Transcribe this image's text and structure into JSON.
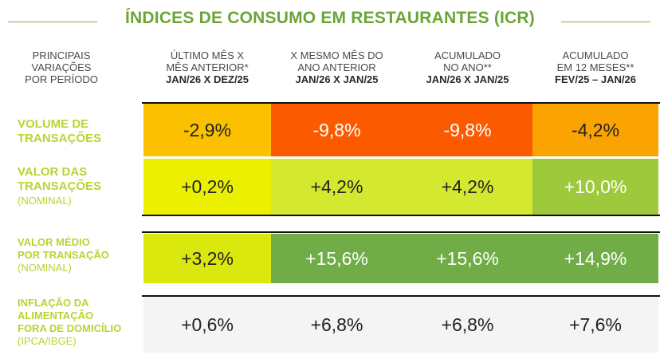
{
  "title": "ÍNDICES DE CONSUMO EM RESTAURANTES (ICR)",
  "corner_header": [
    "PRINCIPAIS",
    "VARIAÇÕES",
    "POR PERÍODO"
  ],
  "columns": [
    {
      "line1": "ÚLTIMO MÊS X",
      "line2": "MÊS ANTERIOR*",
      "period": "JAN/26 X DEZ/25"
    },
    {
      "line1": "X MESMO MÊS DO",
      "line2": "ANO ANTERIOR",
      "period": "JAN/26 X JAN/25"
    },
    {
      "line1": "ACUMULADO",
      "line2": "NO ANO**",
      "period": "JAN/26 X JAN/25"
    },
    {
      "line1": "ACUMULADO",
      "line2": "EM 12 MESES**",
      "period": "FEV/25 – JAN/26"
    }
  ],
  "rows": [
    {
      "label": "VOLUME DE\nTRANSAÇÕES",
      "sub": "",
      "values": [
        "-2,9%",
        "-9,8%",
        "-9,8%",
        "-4,2%"
      ],
      "colors": [
        "#fbc000",
        "#fb5a00",
        "#fb5a00",
        "#fba300"
      ],
      "text_colors": [
        "#222222",
        "#ffffff",
        "#ffffff",
        "#222222"
      ]
    },
    {
      "label": "VALOR DAS\nTRANSAÇÕES",
      "sub": "(NOMINAL)",
      "values": [
        "+0,2%",
        "+4,2%",
        "+4,2%",
        "+10,0%"
      ],
      "colors": [
        "#eaf000",
        "#d4e830",
        "#d4e830",
        "#9fc93c"
      ],
      "text_colors": [
        "#222222",
        "#222222",
        "#222222",
        "#ffffff"
      ]
    },
    {
      "label": "VALOR MÉDIO\nPOR TRANSAÇÃO",
      "sub": "(NOMINAL)",
      "values": [
        "+3,2%",
        "+15,6%",
        "+15,6%",
        "+14,9%"
      ],
      "colors": [
        "#dbe80e",
        "#70ad47",
        "#70ad47",
        "#70ad47"
      ],
      "text_colors": [
        "#222222",
        "#ffffff",
        "#ffffff",
        "#ffffff"
      ]
    },
    {
      "label": "INFLAÇÃO DA\nALIMENTAÇÃO\nFORA DE DOMICÍLIO",
      "sub": "(IPCA/IBGE)",
      "values": [
        "+0,6%",
        "+6,8%",
        "+6,8%",
        "+7,6%"
      ],
      "colors": [
        "#f4f4f4",
        "#f4f4f4",
        "#f4f4f4",
        "#f4f4f4"
      ],
      "text_colors": [
        "#222222",
        "#222222",
        "#222222",
        "#222222"
      ]
    }
  ],
  "chart_data": {
    "type": "table",
    "title": "ÍNDICES DE CONSUMO EM RESTAURANTES (ICR)",
    "columns": [
      "ÚLTIMO MÊS X MÊS ANTERIOR* JAN/26 X DEZ/25",
      "X MESMO MÊS DO ANO ANTERIOR JAN/26 X JAN/25",
      "ACUMULADO NO ANO** JAN/26 X JAN/25",
      "ACUMULADO EM 12 MESES** FEV/25 – JAN/26"
    ],
    "series": [
      {
        "name": "VOLUME DE TRANSAÇÕES",
        "values": [
          -2.9,
          -9.8,
          -9.8,
          -4.2
        ]
      },
      {
        "name": "VALOR DAS TRANSAÇÕES (NOMINAL)",
        "values": [
          0.2,
          4.2,
          4.2,
          10.0
        ]
      },
      {
        "name": "VALOR MÉDIO POR TRANSAÇÃO (NOMINAL)",
        "values": [
          3.2,
          15.6,
          15.6,
          14.9
        ]
      },
      {
        "name": "INFLAÇÃO DA ALIMENTAÇÃO FORA DE DOMICÍLIO (IPCA/IBGE)",
        "values": [
          0.6,
          6.8,
          6.8,
          7.6
        ]
      }
    ]
  }
}
